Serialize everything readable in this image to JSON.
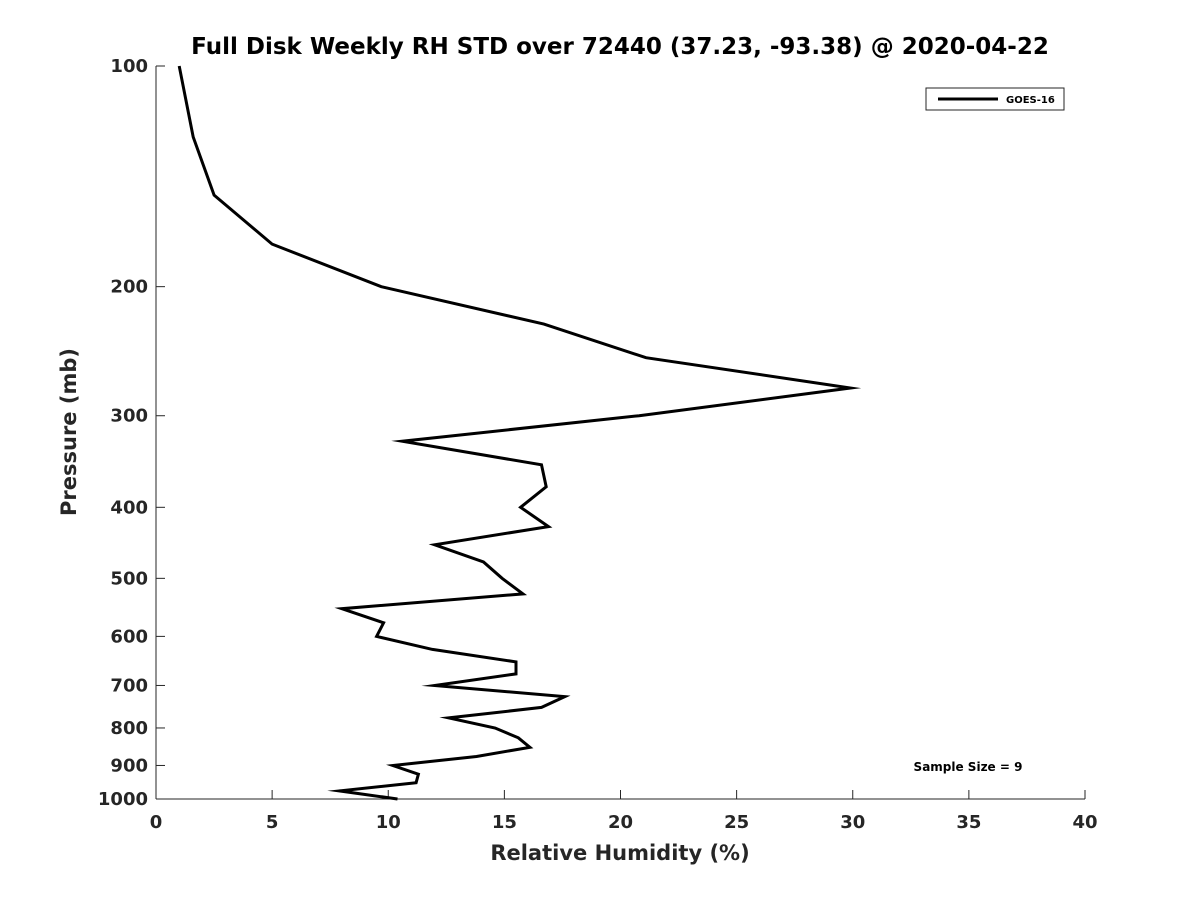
{
  "chart_data": {
    "type": "line",
    "title": "Full Disk Weekly RH STD over 72440 (37.23, -93.38) @ 2020-04-22",
    "xlabel": "Relative Humidity (%)",
    "ylabel": "Pressure (mb)",
    "xlim": [
      0,
      40
    ],
    "ylim": [
      100,
      1000
    ],
    "y_scale": "log",
    "y_reversed": true,
    "grid": false,
    "legend_position": "top-right",
    "x_ticks": [
      "0",
      "5",
      "10",
      "15",
      "20",
      "25",
      "30",
      "35",
      "40"
    ],
    "y_ticks": [
      "100",
      "200",
      "300",
      "400",
      "500",
      "600",
      "700",
      "800",
      "900",
      "1000"
    ],
    "series": [
      {
        "name": "GOES-16",
        "color": "#000000",
        "points": [
          [
            1.0,
            100
          ],
          [
            1.6,
            125
          ],
          [
            2.5,
            150
          ],
          [
            5.0,
            175
          ],
          [
            9.7,
            200
          ],
          [
            16.7,
            225
          ],
          [
            21.1,
            250
          ],
          [
            29.9,
            275
          ],
          [
            20.8,
            300
          ],
          [
            10.6,
            325
          ],
          [
            16.6,
            350
          ],
          [
            16.8,
            375
          ],
          [
            15.7,
            400
          ],
          [
            16.9,
            425
          ],
          [
            12.0,
            450
          ],
          [
            14.1,
            475
          ],
          [
            14.9,
            500
          ],
          [
            15.8,
            525
          ],
          [
            8.0,
            550
          ],
          [
            9.8,
            575
          ],
          [
            9.5,
            600
          ],
          [
            11.9,
            625
          ],
          [
            15.5,
            650
          ],
          [
            15.5,
            675
          ],
          [
            12.0,
            700
          ],
          [
            17.6,
            725
          ],
          [
            16.6,
            750
          ],
          [
            12.6,
            775
          ],
          [
            14.6,
            800
          ],
          [
            15.6,
            825
          ],
          [
            16.1,
            850
          ],
          [
            13.8,
            875
          ],
          [
            10.2,
            900
          ],
          [
            11.3,
            925
          ],
          [
            11.2,
            950
          ],
          [
            7.9,
            975
          ],
          [
            10.4,
            1000
          ]
        ]
      }
    ],
    "annotations": [
      "Sample Size = 9"
    ]
  }
}
